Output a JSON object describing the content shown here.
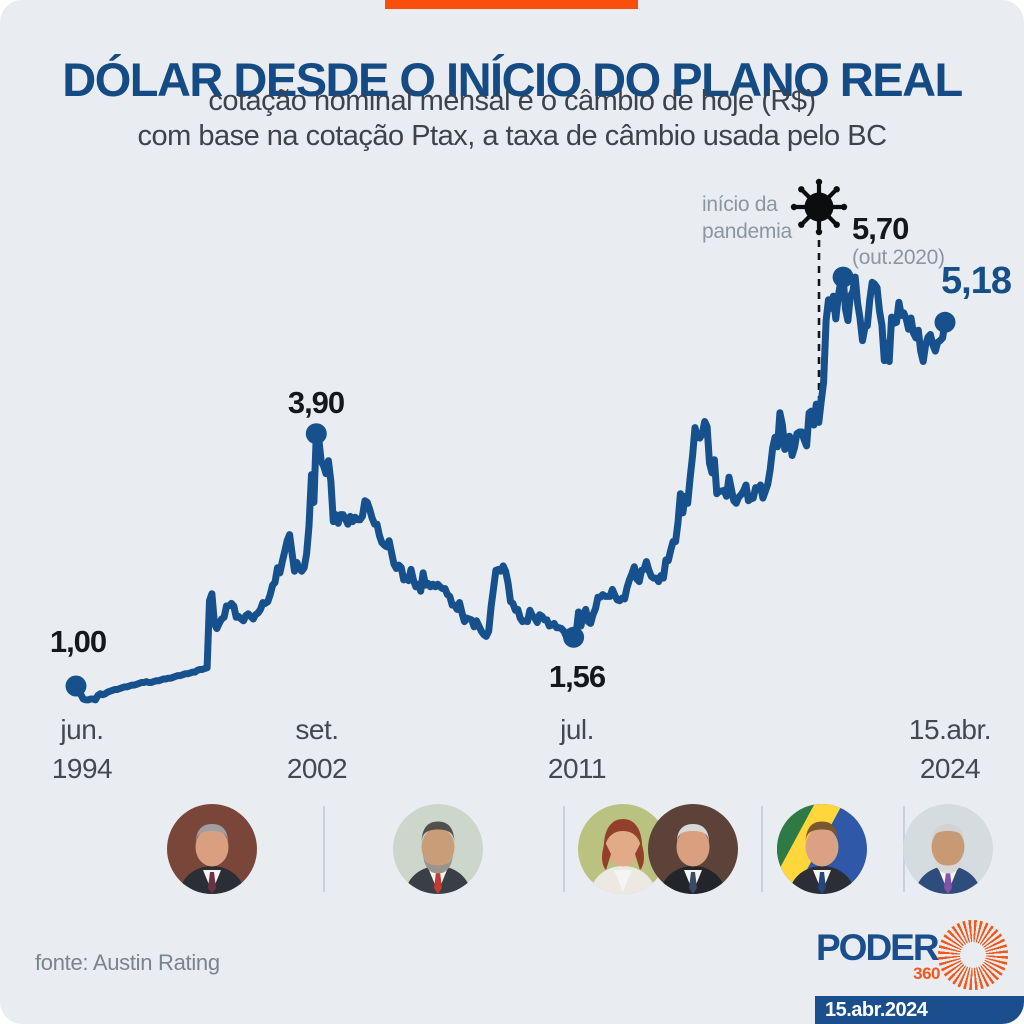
{
  "header": {
    "accent_color": "#fb4e0d",
    "title": "DÓLAR DESDE O INÍCIO DO PLANO REAL",
    "subtitle_line1": "cotação nominal mensal e o câmbio de hoje (R$)",
    "subtitle_line2": "com base na cotação Ptax, a taxa de câmbio usada pelo BC"
  },
  "chart_data": {
    "type": "line",
    "title": "Dólar desde o início do Plano Real",
    "unit": "R$ por US$",
    "frequency": "mensal",
    "x_start": "jun.1994",
    "x_end": "15.abr.2024",
    "line_color": "#16518e",
    "ylim": [
      0.8,
      6.0
    ],
    "grid": false,
    "legend": false,
    "values": [
      1.0,
      0.94,
      0.9,
      0.85,
      0.84,
      0.84,
      0.85,
      0.85,
      0.84,
      0.89,
      0.91,
      0.9,
      0.91,
      0.93,
      0.94,
      0.95,
      0.96,
      0.96,
      0.97,
      0.98,
      0.99,
      0.99,
      1.0,
      1.01,
      1.01,
      1.02,
      1.03,
      1.04,
      1.04,
      1.05,
      1.04,
      1.04,
      1.05,
      1.06,
      1.06,
      1.07,
      1.08,
      1.08,
      1.09,
      1.09,
      1.1,
      1.11,
      1.12,
      1.12,
      1.13,
      1.14,
      1.14,
      1.15,
      1.16,
      1.16,
      1.18,
      1.19,
      1.19,
      1.2,
      1.21,
      1.98,
      2.06,
      1.72,
      1.66,
      1.72,
      1.77,
      1.79,
      1.92,
      1.92,
      1.95,
      1.92,
      1.79,
      1.8,
      1.77,
      1.75,
      1.81,
      1.83,
      1.8,
      1.77,
      1.82,
      1.84,
      1.88,
      1.96,
      1.95,
      1.97,
      2.05,
      2.16,
      2.19,
      2.36,
      2.3,
      2.43,
      2.55,
      2.67,
      2.74,
      2.53,
      2.32,
      2.42,
      2.35,
      2.32,
      2.36,
      2.52,
      2.84,
      3.43,
      3.11,
      3.9,
      3.85,
      3.58,
      3.53,
      3.44,
      3.59,
      3.35,
      2.89,
      2.97,
      2.87,
      2.97,
      2.97,
      2.92,
      2.86,
      2.95,
      2.89,
      2.94,
      2.91,
      2.91,
      2.95,
      3.13,
      3.11,
      3.03,
      2.93,
      2.86,
      2.86,
      2.73,
      2.65,
      2.62,
      2.6,
      2.67,
      2.53,
      2.4,
      2.35,
      2.39,
      2.36,
      2.22,
      2.25,
      2.21,
      2.34,
      2.22,
      2.14,
      2.17,
      2.09,
      2.3,
      2.16,
      2.18,
      2.14,
      2.17,
      2.14,
      2.17,
      2.14,
      2.12,
      2.12,
      2.05,
      2.03,
      1.93,
      1.93,
      1.88,
      1.96,
      1.84,
      1.74,
      1.78,
      1.77,
      1.76,
      1.68,
      1.75,
      1.69,
      1.63,
      1.59,
      1.57,
      1.63,
      1.91,
      2.12,
      2.33,
      2.34,
      2.32,
      2.38,
      2.32,
      2.18,
      1.97,
      1.95,
      1.87,
      1.88,
      1.78,
      1.74,
      1.75,
      1.74,
      1.87,
      1.81,
      1.78,
      1.73,
      1.82,
      1.8,
      1.76,
      1.76,
      1.69,
      1.7,
      1.72,
      1.67,
      1.67,
      1.66,
      1.63,
      1.57,
      1.58,
      1.56,
      1.56,
      1.59,
      1.85,
      1.69,
      1.81,
      1.88,
      1.74,
      1.72,
      1.82,
      1.89,
      2.02,
      2.02,
      2.05,
      2.03,
      2.03,
      2.03,
      2.11,
      2.04,
      1.99,
      1.98,
      2.01,
      2.0,
      2.13,
      2.22,
      2.29,
      2.37,
      2.23,
      2.2,
      2.33,
      2.34,
      2.43,
      2.33,
      2.26,
      2.24,
      2.24,
      2.2,
      2.27,
      2.24,
      2.45,
      2.44,
      2.56,
      2.66,
      2.66,
      2.88,
      3.21,
      2.99,
      3.18,
      3.1,
      3.39,
      3.65,
      3.97,
      3.86,
      3.85,
      3.9,
      4.04,
      3.98,
      3.56,
      3.45,
      3.6,
      3.21,
      3.24,
      3.24,
      3.25,
      3.18,
      3.4,
      3.26,
      3.13,
      3.1,
      3.17,
      3.2,
      3.24,
      3.31,
      3.13,
      3.15,
      3.16,
      3.28,
      3.26,
      3.31,
      3.16,
      3.24,
      3.32,
      3.49,
      3.74,
      3.86,
      3.75,
      4.14,
      4.0,
      3.72,
      3.86,
      3.87,
      3.65,
      3.74,
      3.9,
      3.92,
      3.92,
      3.83,
      3.76,
      4.14,
      4.16,
      4.0,
      4.24,
      4.03,
      4.27,
      4.49,
      5.2,
      5.44,
      5.34,
      5.48,
      5.22,
      5.47,
      5.64,
      5.7,
      5.33,
      5.2,
      5.48,
      5.53,
      5.7,
      5.4,
      5.23,
      4.97,
      5.12,
      5.14,
      5.44,
      5.64,
      5.62,
      5.58,
      5.31,
      5.15,
      4.74,
      4.94,
      4.73,
      5.24,
      5.17,
      5.18,
      5.41,
      5.26,
      5.29,
      5.22,
      5.1,
      5.23,
      5.06,
      5.0,
      5.09,
      4.85,
      4.73,
      4.92,
      5.01,
      5.04,
      4.92,
      4.85,
      4.95,
      4.97,
      5.0,
      5.18
    ],
    "x_axis_labels": [
      {
        "line1": "jun.",
        "line2": "1994"
      },
      {
        "line1": "set.",
        "line2": "2002"
      },
      {
        "line1": "jul.",
        "line2": "2011"
      },
      {
        "line1": "15.abr.",
        "line2": "2024"
      }
    ],
    "markers": [
      {
        "label": "1,00",
        "value": 1.0,
        "point_index": 0
      },
      {
        "label": "3,90",
        "value": 3.9,
        "point_index": 99
      },
      {
        "label": "1,56",
        "value": 1.56,
        "point_index": 205
      },
      {
        "label": "5,70",
        "sublabel": "(out.2020)",
        "value": 5.7,
        "point_index": 316
      },
      {
        "label": "5,18",
        "value": 5.18,
        "point_index": 358
      }
    ],
    "annotation": {
      "line1": "início da",
      "line2": "pandemia",
      "icon": "coronavirus-icon"
    }
  },
  "presidents": [
    {
      "icon": "avatar-fhc"
    },
    {
      "icon": "avatar-lula-1"
    },
    {
      "icon": "avatar-dilma"
    },
    {
      "icon": "avatar-temer"
    },
    {
      "icon": "avatar-bolsonaro"
    },
    {
      "icon": "avatar-lula-2"
    }
  ],
  "footer": {
    "source": "fonte: Austin Rating",
    "brand_name": "PODER",
    "brand_number": "360",
    "brand_icon": "sunburst-icon",
    "brand_color": "#1b4e8c",
    "brand_accent": "#f2571c",
    "date_badge": "15.abr.2024"
  }
}
